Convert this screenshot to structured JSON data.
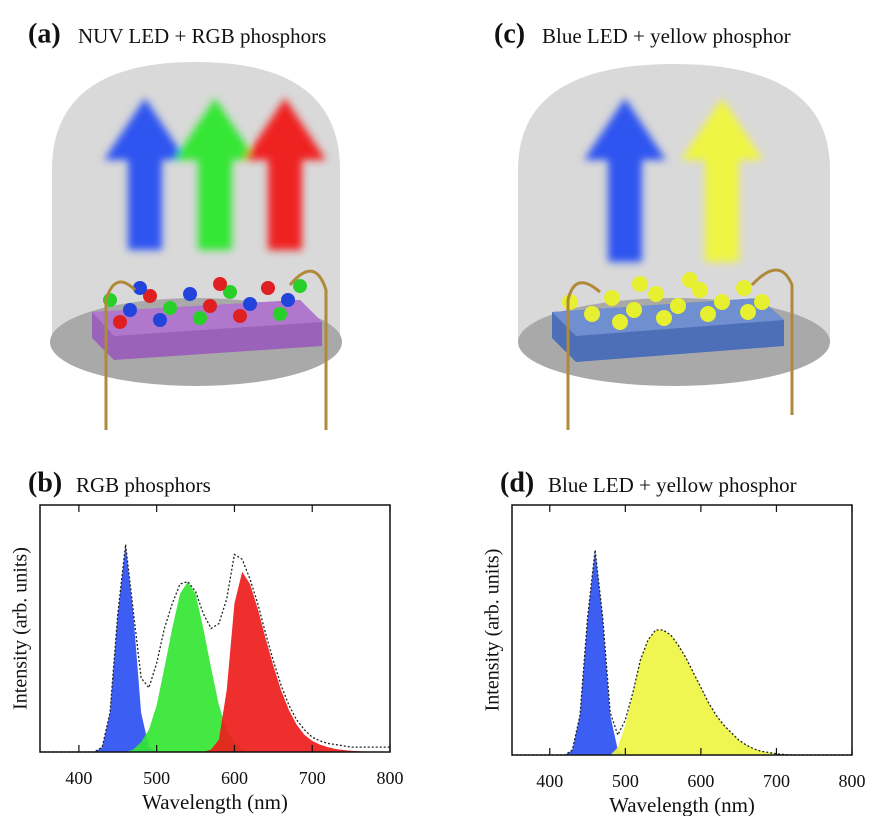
{
  "illustrations": [
    {
      "panel_label": "(a)",
      "title": "NUV LED + RGB phosphors"
    },
    {
      "panel_label": "(c)",
      "title": "Blue LED + yellow phosphor"
    }
  ],
  "chart_data": [
    {
      "type": "area",
      "panel_label": "(b)",
      "title": "RGB phosphors",
      "x_label": "Wavelength (nm)",
      "y_label": "Intensity (arb. units)",
      "xlim": [
        350,
        800
      ],
      "xticks": [
        400,
        500,
        600,
        700,
        800
      ],
      "ylim": [
        0,
        1
      ],
      "x": [
        350,
        360,
        370,
        380,
        390,
        400,
        410,
        420,
        430,
        440,
        450,
        460,
        470,
        480,
        490,
        500,
        510,
        520,
        530,
        540,
        550,
        560,
        570,
        580,
        590,
        600,
        610,
        620,
        630,
        640,
        650,
        660,
        670,
        680,
        690,
        700,
        710,
        720,
        730,
        740,
        750,
        760,
        770,
        780,
        790,
        800
      ],
      "series": [
        {
          "color": "#2b50f2",
          "fill": true,
          "values": [
            0,
            0,
            0,
            0,
            0,
            0,
            0,
            0,
            0.02,
            0.16,
            0.56,
            0.84,
            0.56,
            0.16,
            0.02,
            0,
            0,
            0,
            0,
            0,
            0,
            0,
            0,
            0,
            0,
            0,
            0,
            0,
            0,
            0,
            0,
            0,
            0,
            0,
            0,
            0,
            0,
            0,
            0,
            0,
            0,
            0,
            0,
            0,
            0,
            0
          ]
        },
        {
          "color": "#33e633",
          "fill": true,
          "values": [
            0,
            0,
            0,
            0,
            0,
            0,
            0,
            0,
            0,
            0,
            0,
            0,
            0.01,
            0.04,
            0.09,
            0.19,
            0.34,
            0.5,
            0.64,
            0.69,
            0.64,
            0.5,
            0.34,
            0.19,
            0.09,
            0.04,
            0.01,
            0,
            0,
            0,
            0,
            0,
            0,
            0,
            0,
            0,
            0,
            0,
            0,
            0,
            0,
            0,
            0,
            0,
            0,
            0
          ]
        },
        {
          "color": "#ee1c1c",
          "fill": true,
          "values": [
            0,
            0,
            0,
            0,
            0,
            0,
            0,
            0,
            0,
            0,
            0,
            0,
            0,
            0,
            0,
            0,
            0,
            0,
            0,
            0,
            0,
            0,
            0.01,
            0.05,
            0.25,
            0.6,
            0.73,
            0.68,
            0.58,
            0.46,
            0.35,
            0.25,
            0.17,
            0.11,
            0.07,
            0.045,
            0.03,
            0.02,
            0.012,
            0.008,
            0.005,
            0.003,
            0.002,
            0.001,
            0,
            0
          ]
        },
        {
          "color": "#222222",
          "fill": false,
          "dash": "dotted",
          "values": [
            0,
            0,
            0,
            0,
            0,
            0,
            0,
            0,
            0.02,
            0.16,
            0.56,
            0.84,
            0.57,
            0.3,
            0.26,
            0.36,
            0.5,
            0.6,
            0.68,
            0.69,
            0.65,
            0.56,
            0.5,
            0.52,
            0.62,
            0.8,
            0.78,
            0.7,
            0.6,
            0.48,
            0.37,
            0.27,
            0.19,
            0.13,
            0.09,
            0.06,
            0.045,
            0.035,
            0.03,
            0.025,
            0.02,
            0.02,
            0.02,
            0.02,
            0.02,
            0.02
          ]
        }
      ]
    },
    {
      "type": "area",
      "panel_label": "(d)",
      "title": "Blue LED + yellow phosphor",
      "x_label": "Wavelength (nm)",
      "y_label": "Intensity (arb. units)",
      "xlim": [
        350,
        800
      ],
      "xticks": [
        400,
        500,
        600,
        700,
        800
      ],
      "ylim": [
        0,
        1
      ],
      "x": [
        350,
        360,
        370,
        380,
        390,
        400,
        410,
        420,
        430,
        440,
        450,
        460,
        470,
        480,
        490,
        500,
        510,
        520,
        530,
        540,
        550,
        560,
        570,
        580,
        590,
        600,
        610,
        620,
        630,
        640,
        650,
        660,
        670,
        680,
        690,
        700,
        710,
        720,
        730,
        740,
        750,
        760,
        770,
        780,
        790,
        800
      ],
      "series": [
        {
          "color": "#2b50f2",
          "fill": true,
          "values": [
            0,
            0,
            0,
            0,
            0,
            0,
            0,
            0,
            0.02,
            0.16,
            0.55,
            0.82,
            0.55,
            0.16,
            0.02,
            0,
            0,
            0,
            0,
            0,
            0,
            0,
            0,
            0,
            0,
            0,
            0,
            0,
            0,
            0,
            0,
            0,
            0,
            0,
            0,
            0,
            0,
            0,
            0,
            0,
            0,
            0,
            0,
            0,
            0,
            0
          ]
        },
        {
          "color": "#eef542",
          "fill": true,
          "values": [
            0,
            0,
            0,
            0,
            0,
            0,
            0,
            0,
            0,
            0,
            0,
            0,
            0,
            0,
            0.03,
            0.12,
            0.25,
            0.38,
            0.46,
            0.5,
            0.5,
            0.48,
            0.44,
            0.39,
            0.33,
            0.27,
            0.21,
            0.16,
            0.12,
            0.09,
            0.06,
            0.04,
            0.025,
            0.015,
            0.01,
            0.005,
            0.002,
            0,
            0,
            0,
            0,
            0,
            0,
            0,
            0,
            0
          ]
        },
        {
          "color": "#222222",
          "fill": false,
          "dash": "dotted",
          "values": [
            0,
            0,
            0,
            0,
            0,
            0,
            0,
            0,
            0.02,
            0.16,
            0.55,
            0.82,
            0.55,
            0.17,
            0.08,
            0.14,
            0.25,
            0.38,
            0.46,
            0.5,
            0.5,
            0.48,
            0.44,
            0.39,
            0.33,
            0.27,
            0.21,
            0.16,
            0.12,
            0.09,
            0.06,
            0.04,
            0.025,
            0.015,
            0.01,
            0.005,
            0.002,
            0,
            0,
            0,
            0,
            0,
            0,
            0,
            0,
            0
          ]
        }
      ]
    }
  ]
}
